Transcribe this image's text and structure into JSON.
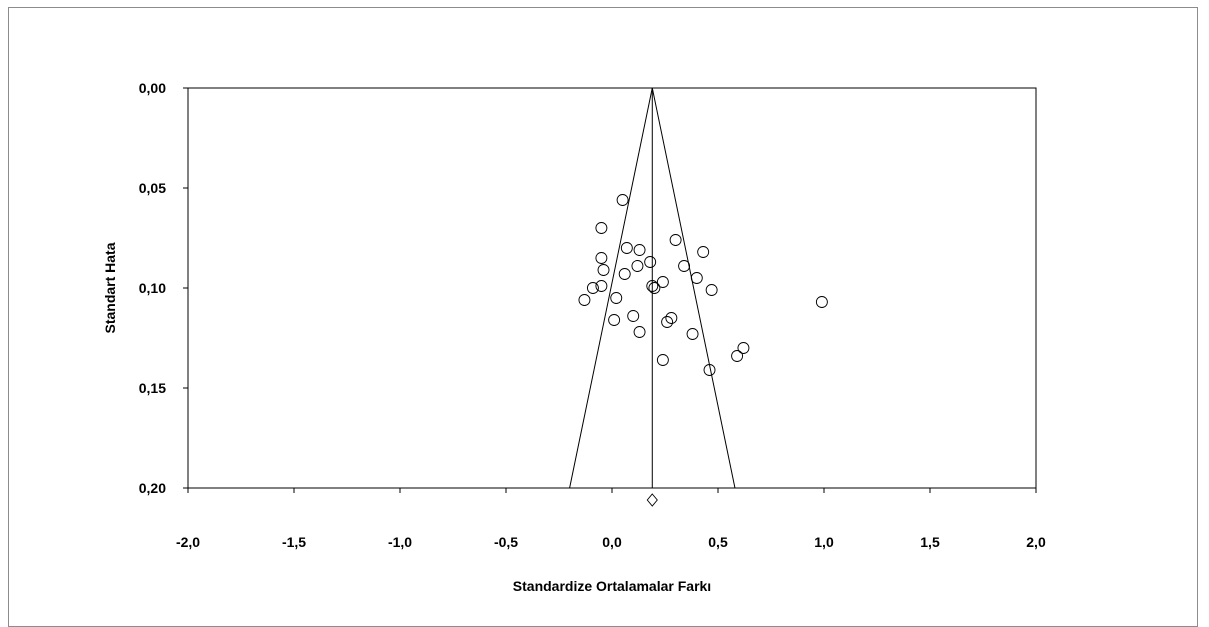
{
  "chart_data": {
    "type": "scatter",
    "subtype": "funnel-plot",
    "xlabel": "Standardize Ortalamalar Farkı",
    "ylabel": "Standart Hata",
    "xlim": [
      -2.0,
      2.0
    ],
    "ylim": [
      0.0,
      0.2
    ],
    "y_reversed": true,
    "x_ticks": [
      -2.0,
      -1.5,
      -1.0,
      -0.5,
      0.0,
      0.5,
      1.0,
      1.5,
      2.0
    ],
    "x_tick_labels": [
      "-2,0",
      "-1,5",
      "-1,0",
      "-0,5",
      "0,0",
      "0,5",
      "1,0",
      "1,5",
      "2,0"
    ],
    "y_ticks": [
      0.0,
      0.05,
      0.1,
      0.15,
      0.2
    ],
    "y_tick_labels": [
      "0,00",
      "0,05",
      "0,10",
      "0,15",
      "0,20"
    ],
    "grid": false,
    "legend": "none",
    "pooled_effect": 0.19,
    "funnel": {
      "apex": [
        0.19,
        0.0
      ],
      "left_base": [
        -0.2,
        0.2
      ],
      "right_base": [
        0.58,
        0.2
      ]
    },
    "summary_diamond": {
      "x": 0.19,
      "y": 0.206
    },
    "points": [
      [
        0.05,
        0.056
      ],
      [
        -0.05,
        0.07
      ],
      [
        0.3,
        0.076
      ],
      [
        0.07,
        0.08
      ],
      [
        0.13,
        0.081
      ],
      [
        0.43,
        0.082
      ],
      [
        -0.05,
        0.085
      ],
      [
        0.18,
        0.087
      ],
      [
        0.12,
        0.089
      ],
      [
        0.34,
        0.089
      ],
      [
        -0.04,
        0.091
      ],
      [
        0.06,
        0.093
      ],
      [
        0.4,
        0.095
      ],
      [
        0.24,
        0.097
      ],
      [
        0.19,
        0.099
      ],
      [
        0.2,
        0.1
      ],
      [
        -0.05,
        0.099
      ],
      [
        -0.09,
        0.1
      ],
      [
        0.47,
        0.101
      ],
      [
        0.02,
        0.105
      ],
      [
        -0.13,
        0.106
      ],
      [
        0.99,
        0.107
      ],
      [
        0.1,
        0.114
      ],
      [
        0.28,
        0.115
      ],
      [
        0.01,
        0.116
      ],
      [
        0.26,
        0.117
      ],
      [
        0.13,
        0.122
      ],
      [
        0.38,
        0.123
      ],
      [
        0.62,
        0.13
      ],
      [
        0.59,
        0.134
      ],
      [
        0.24,
        0.136
      ],
      [
        0.46,
        0.141
      ]
    ]
  }
}
